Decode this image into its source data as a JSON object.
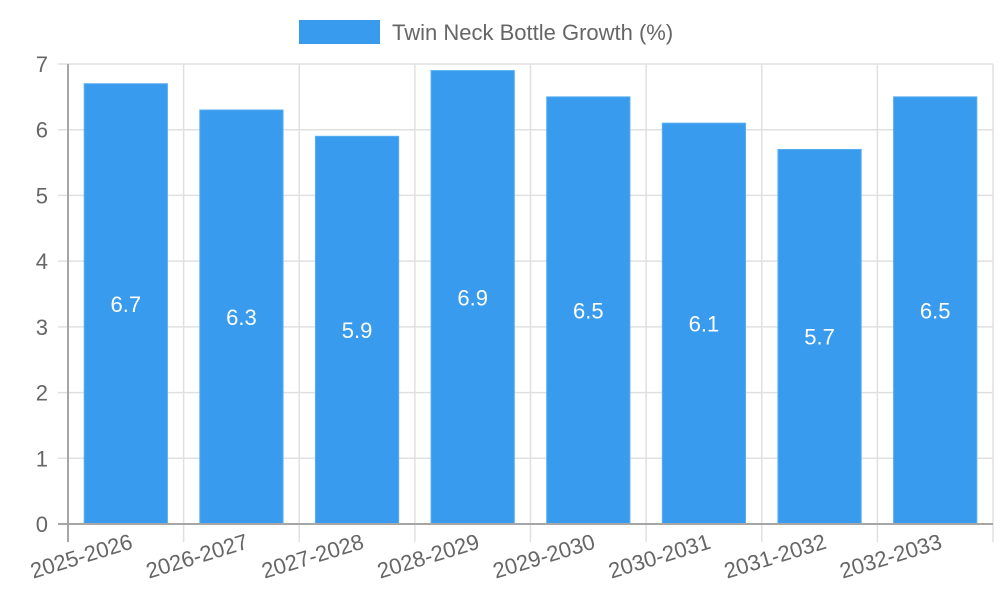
{
  "chart_data": {
    "type": "bar",
    "title": "",
    "xlabel": "",
    "ylabel": "",
    "legend": {
      "position": "top",
      "entries": [
        "Twin Neck Bottle Growth (%)"
      ]
    },
    "categories": [
      "2025-2026",
      "2026-2027",
      "2027-2028",
      "2028-2029",
      "2029-2030",
      "2030-2031",
      "2031-2032",
      "2032-2033"
    ],
    "series": [
      {
        "name": "Twin Neck Bottle Growth (%)",
        "values": [
          6.7,
          6.3,
          5.9,
          6.9,
          6.5,
          6.1,
          5.7,
          6.5
        ],
        "color": "#389BEE"
      }
    ],
    "ylim": [
      0,
      7
    ],
    "yticks": [
      0,
      1,
      2,
      3,
      4,
      5,
      6,
      7
    ],
    "grid": true,
    "data_labels": true
  },
  "colors": {
    "bar": "#389BEE",
    "bar_border": "#5AAEF2",
    "grid": "#e0e0e0",
    "axis": "#a6a6a6",
    "text": "#666666",
    "label_text": "#ffffff"
  }
}
